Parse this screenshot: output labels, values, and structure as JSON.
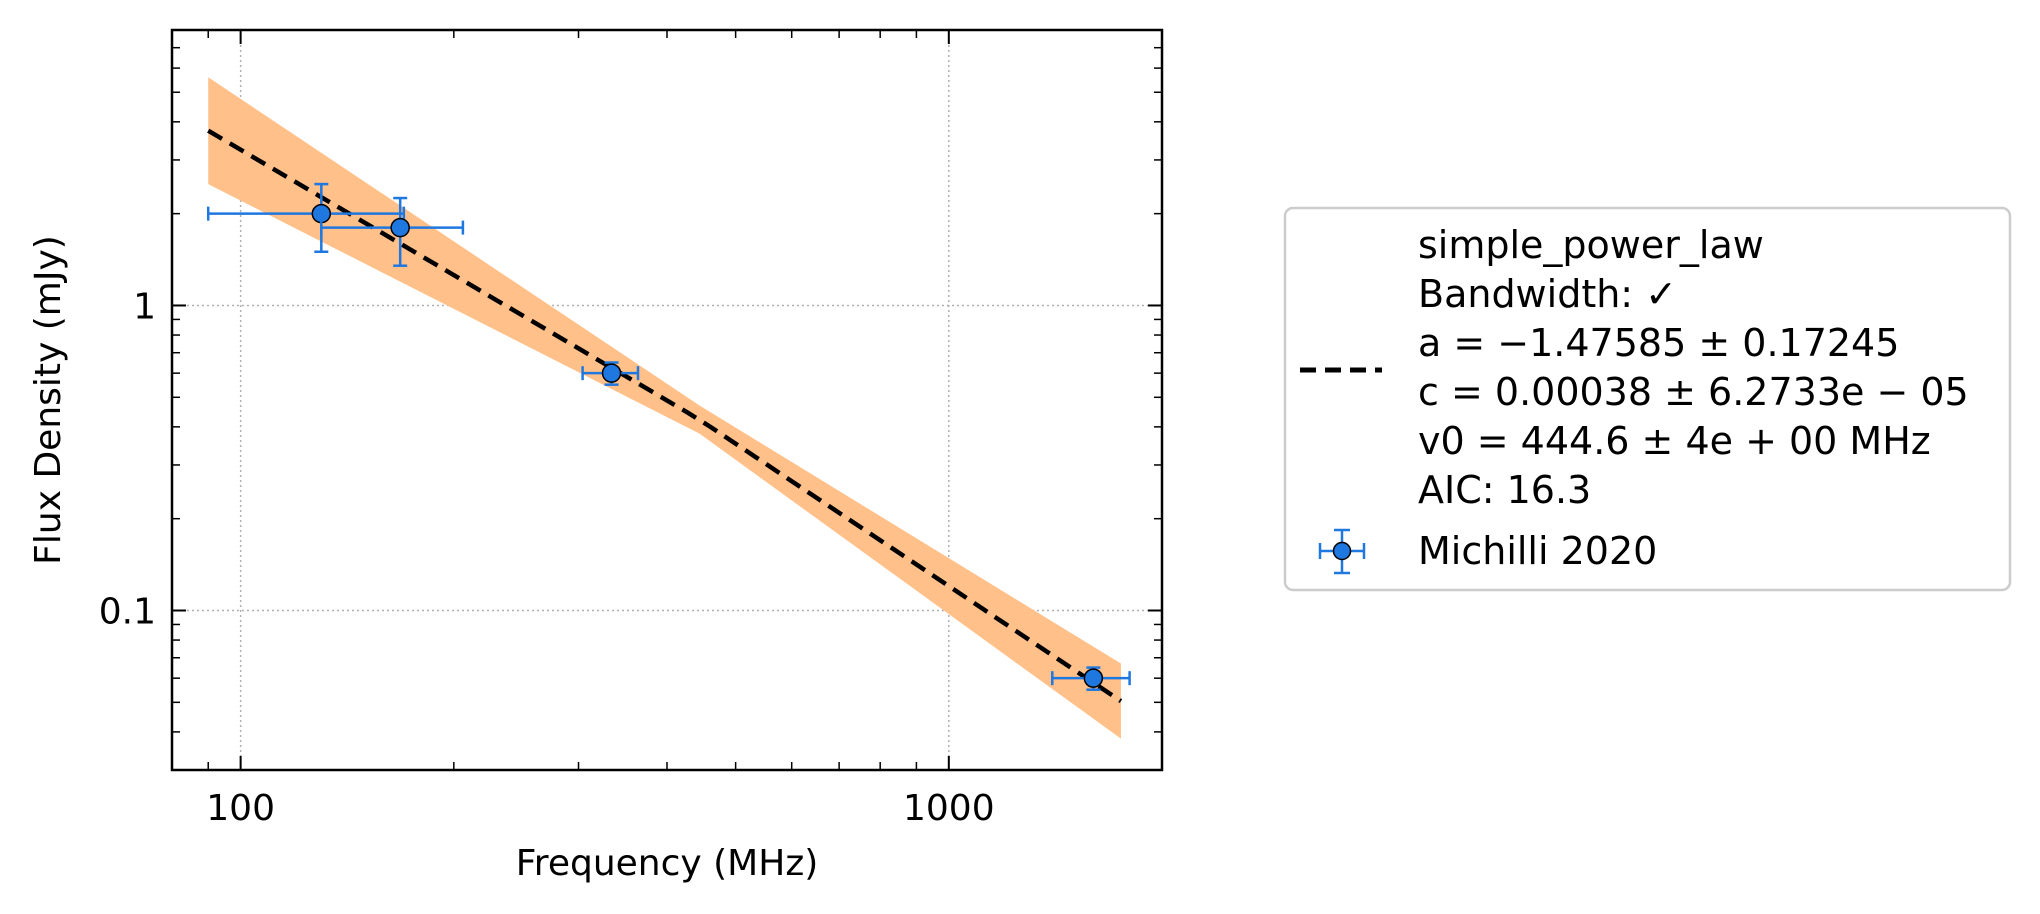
{
  "chart_data": {
    "type": "scatter",
    "title": "",
    "xlabel": "Frequency (MHz)",
    "ylabel": "Flux Density (mJy)",
    "xscale": "log",
    "yscale": "log",
    "xlim": [
      80,
      2000
    ],
    "ylim": [
      0.03,
      8.0
    ],
    "xticks": [
      {
        "value": 100,
        "label": "100"
      },
      {
        "value": 1000,
        "label": "1000"
      }
    ],
    "yticks": [
      {
        "value": 0.1,
        "label": "0.1"
      },
      {
        "value": 1,
        "label": "1"
      }
    ],
    "grid": true,
    "legend_position": "outside-right",
    "colors": {
      "data": "#1f77e0",
      "data_edge": "#000000",
      "fit_line": "#000000",
      "band": "#ffc08a"
    },
    "series": [
      {
        "name": "Michilli 2020",
        "kind": "errorbar",
        "points": [
          {
            "x": 130,
            "y": 2.0,
            "xlo": 90,
            "xhi": 170,
            "ylo": 1.5,
            "yhi": 2.5
          },
          {
            "x": 168,
            "y": 1.8,
            "xlo": 130,
            "xhi": 206,
            "ylo": 1.35,
            "yhi": 2.25
          },
          {
            "x": 334,
            "y": 0.6,
            "xlo": 304,
            "xhi": 364,
            "ylo": 0.55,
            "yhi": 0.65
          },
          {
            "x": 1600,
            "y": 0.06,
            "xlo": 1400,
            "xhi": 1800,
            "ylo": 0.055,
            "yhi": 0.065
          }
        ]
      },
      {
        "name": "simple_power_law",
        "kind": "fit",
        "fit": {
          "a": -1.47585,
          "c": 0.00038,
          "v0": 444.6,
          "x_range": [
            90,
            1750
          ]
        },
        "band": [
          {
            "x": 90,
            "ylo": 2.5,
            "yhi": 5.6
          },
          {
            "x": 444.6,
            "ylo": 0.38,
            "yhi": 0.47
          },
          {
            "x": 1750,
            "ylo": 0.038,
            "yhi": 0.067
          }
        ]
      }
    ],
    "legend": {
      "fit_lines": [
        "simple_power_law",
        "Bandwidth: ✓",
        "a = −1.47585 ± 0.17245",
        "c = 0.00038 ± 6.2733e − 05",
        "v0 = 444.6 ± 4e + 00 MHz",
        "AIC: 16.3"
      ],
      "data_label": "Michilli 2020"
    }
  }
}
